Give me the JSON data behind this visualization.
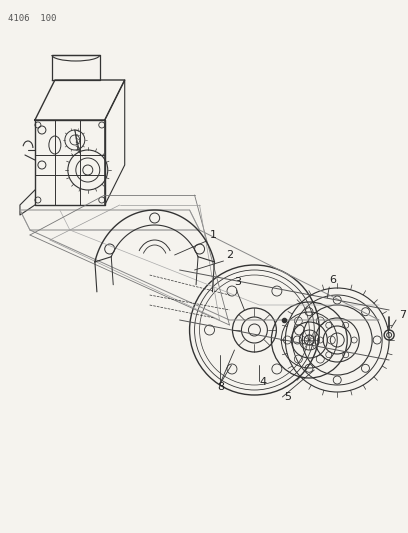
{
  "background_color": "#f5f3ee",
  "line_color": "#333333",
  "text_color": "#222222",
  "header_text": "4106  100",
  "fig_width": 4.08,
  "fig_height": 5.33,
  "dpi": 100
}
